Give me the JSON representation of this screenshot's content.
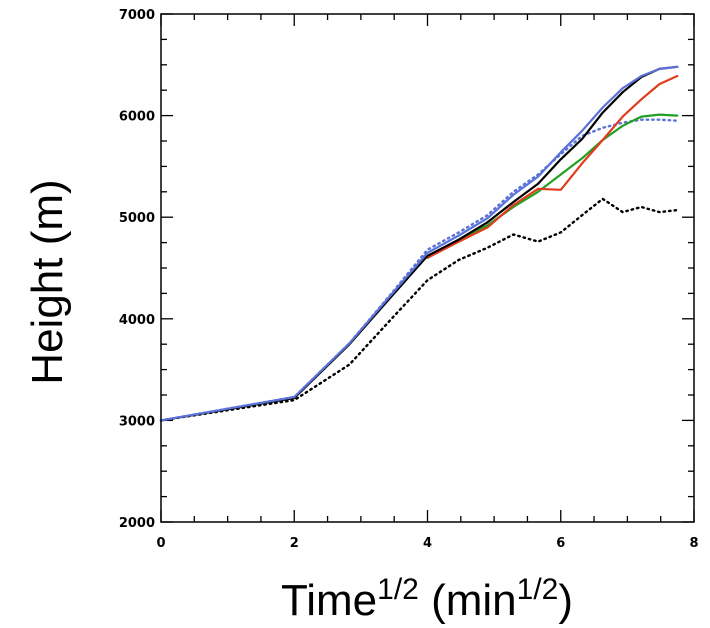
{
  "chart_data": {
    "type": "line",
    "xlabel": {
      "base": "Time",
      "sup": "1/2",
      "open": " (min",
      "unit_sup": "1/2",
      "close": ")"
    },
    "ylabel": "Height (m)",
    "xlim": [
      0,
      8
    ],
    "ylim": [
      2000,
      7000
    ],
    "xticks": [
      0,
      2,
      4,
      6,
      8
    ],
    "yticks": [
      2000,
      3000,
      4000,
      5000,
      6000,
      7000
    ],
    "x_minor_step": 0.5,
    "y_minor_step": 250,
    "grid": false,
    "legend": "none",
    "series": [
      {
        "color": "#000000",
        "dash": "dotted",
        "x": [
          0,
          2,
          2.83,
          3.46,
          4.0,
          4.47,
          4.9,
          5.29,
          5.66,
          6.0,
          6.32,
          6.63,
          6.93,
          7.21,
          7.48,
          7.75
        ],
        "y": [
          3000,
          3200,
          3550,
          4000,
          4380,
          4580,
          4700,
          4830,
          4760,
          4850,
          5020,
          5180,
          5050,
          5100,
          5050,
          5070
        ]
      },
      {
        "color": "#5b72d8",
        "dash": "dotted",
        "x": [
          0,
          2,
          2.83,
          3.46,
          4.0,
          4.47,
          4.9,
          5.29,
          5.66,
          6.0,
          6.32,
          6.63,
          6.93,
          7.21,
          7.48,
          7.75
        ],
        "y": [
          3000,
          3230,
          3760,
          4250,
          4680,
          4850,
          5020,
          5250,
          5420,
          5620,
          5800,
          5880,
          5930,
          5960,
          5960,
          5950
        ]
      },
      {
        "color": "#22a022",
        "dash": "solid",
        "x": [
          4.0,
          4.47,
          4.9,
          5.29,
          5.66,
          6.0,
          6.32,
          6.63,
          6.93,
          7.21,
          7.48,
          7.75
        ],
        "y": [
          4600,
          4780,
          4920,
          5100,
          5250,
          5420,
          5580,
          5760,
          5900,
          5990,
          6010,
          6000
        ]
      },
      {
        "color": "#e03c1e",
        "dash": "solid",
        "x": [
          4.0,
          4.47,
          4.9,
          5.29,
          5.66,
          6.0,
          6.32,
          6.63,
          6.93,
          7.21,
          7.48,
          7.75
        ],
        "y": [
          4600,
          4760,
          4900,
          5120,
          5280,
          5270,
          5530,
          5760,
          5990,
          6160,
          6310,
          6390
        ]
      },
      {
        "color": "#000000",
        "dash": "solid",
        "x": [
          0,
          2,
          2.83,
          3.46,
          4.0,
          4.47,
          4.9,
          5.29,
          5.66,
          6.0,
          6.32,
          6.63,
          6.93,
          7.21,
          7.48,
          7.75
        ],
        "y": [
          3000,
          3220,
          3750,
          4220,
          4620,
          4780,
          4950,
          5150,
          5330,
          5570,
          5770,
          6030,
          6230,
          6380,
          6460,
          6480
        ]
      },
      {
        "color": "#5b72d8",
        "dash": "solid",
        "x": [
          0,
          2,
          2.83,
          3.46,
          4.0,
          4.47,
          4.9,
          5.29,
          5.66,
          6.0,
          6.32,
          6.63,
          6.93,
          7.21,
          7.48,
          7.75
        ],
        "y": [
          3000,
          3230,
          3760,
          4240,
          4650,
          4820,
          4990,
          5220,
          5400,
          5640,
          5850,
          6080,
          6270,
          6390,
          6460,
          6480
        ]
      }
    ]
  }
}
